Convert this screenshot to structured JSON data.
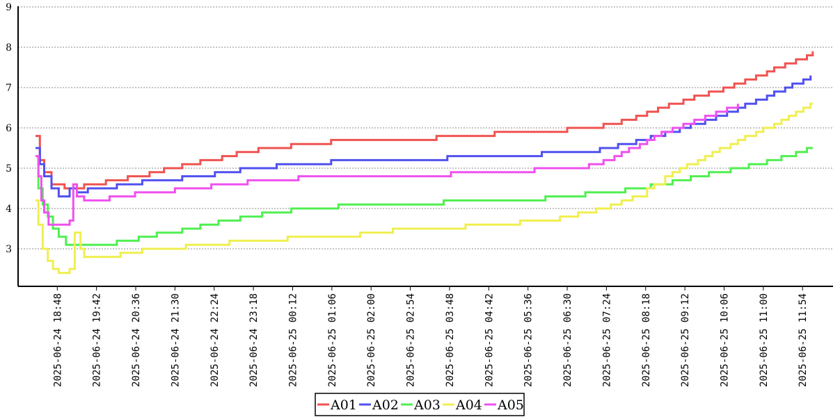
{
  "chart_data": {
    "type": "line",
    "title": "",
    "xlabel": "",
    "ylabel": "",
    "ylim": [
      2,
      9
    ],
    "y_ticks": [
      "3",
      "4",
      "5",
      "6",
      "7",
      "8",
      "9"
    ],
    "grid": "horizontal dashed",
    "legend_placement": "bottom-center",
    "x_tick_labels": [
      "2025-06-24 18:48",
      "2025-06-24 19:42",
      "2025-06-24 20:36",
      "2025-06-24 21:30",
      "2025-06-24 22:24",
      "2025-06-24 23:18",
      "2025-06-25 00:12",
      "2025-06-25 01:06",
      "2025-06-25 02:00",
      "2025-06-25 02:54",
      "2025-06-25 03:48",
      "2025-06-25 04:42",
      "2025-06-25 05:36",
      "2025-06-25 06:30",
      "2025-06-25 07:24",
      "2025-06-25 08:18",
      "2025-06-25 09:12",
      "2025-06-25 10:06",
      "2025-06-25 11:00",
      "2025-06-25 11:54"
    ],
    "x_range": [
      "2025-06-24 18:18",
      "2025-06-25 12:12"
    ],
    "series": [
      {
        "name": "A01",
        "color": "#ef5350",
        "points": [
          [
            "2025-06-24 18:18",
            5.8
          ],
          [
            "2025-06-24 18:24",
            5.2
          ],
          [
            "2025-06-24 18:30",
            4.9
          ],
          [
            "2025-06-24 18:40",
            4.6
          ],
          [
            "2025-06-24 18:58",
            4.5
          ],
          [
            "2025-06-24 19:10",
            4.5
          ],
          [
            "2025-06-24 19:25",
            4.6
          ],
          [
            "2025-06-24 19:55",
            4.7
          ],
          [
            "2025-06-24 20:25",
            4.8
          ],
          [
            "2025-06-24 20:55",
            4.9
          ],
          [
            "2025-06-24 21:15",
            5.0
          ],
          [
            "2025-06-24 21:40",
            5.1
          ],
          [
            "2025-06-24 22:05",
            5.2
          ],
          [
            "2025-06-24 22:35",
            5.3
          ],
          [
            "2025-06-24 22:55",
            5.4
          ],
          [
            "2025-06-24 23:25",
            5.5
          ],
          [
            "2025-06-25 00:10",
            5.6
          ],
          [
            "2025-06-25 01:05",
            5.7
          ],
          [
            "2025-06-25 03:30",
            5.8
          ],
          [
            "2025-06-25 04:50",
            5.9
          ],
          [
            "2025-06-25 06:30",
            6.0
          ],
          [
            "2025-06-25 07:20",
            6.1
          ],
          [
            "2025-06-25 07:45",
            6.2
          ],
          [
            "2025-06-25 08:05",
            6.3
          ],
          [
            "2025-06-25 08:20",
            6.4
          ],
          [
            "2025-06-25 08:35",
            6.5
          ],
          [
            "2025-06-25 08:50",
            6.6
          ],
          [
            "2025-06-25 09:10",
            6.7
          ],
          [
            "2025-06-25 09:25",
            6.8
          ],
          [
            "2025-06-25 09:45",
            6.9
          ],
          [
            "2025-06-25 10:05",
            7.0
          ],
          [
            "2025-06-25 10:20",
            7.1
          ],
          [
            "2025-06-25 10:35",
            7.2
          ],
          [
            "2025-06-25 10:50",
            7.3
          ],
          [
            "2025-06-25 11:05",
            7.4
          ],
          [
            "2025-06-25 11:15",
            7.5
          ],
          [
            "2025-06-25 11:30",
            7.6
          ],
          [
            "2025-06-25 11:45",
            7.7
          ],
          [
            "2025-06-25 12:00",
            7.8
          ],
          [
            "2025-06-25 12:08",
            7.9
          ]
        ]
      },
      {
        "name": "A02",
        "color": "#5050ef",
        "points": [
          [
            "2025-06-24 18:18",
            5.5
          ],
          [
            "2025-06-24 18:24",
            5.1
          ],
          [
            "2025-06-24 18:30",
            4.8
          ],
          [
            "2025-06-24 18:40",
            4.5
          ],
          [
            "2025-06-24 18:50",
            4.3
          ],
          [
            "2025-06-24 19:05",
            4.5
          ],
          [
            "2025-06-24 19:15",
            4.4
          ],
          [
            "2025-06-24 19:30",
            4.5
          ],
          [
            "2025-06-24 20:10",
            4.6
          ],
          [
            "2025-06-24 20:45",
            4.7
          ],
          [
            "2025-06-24 21:40",
            4.8
          ],
          [
            "2025-06-24 22:25",
            4.9
          ],
          [
            "2025-06-24 23:00",
            5.0
          ],
          [
            "2025-06-24 23:50",
            5.1
          ],
          [
            "2025-06-25 01:05",
            5.2
          ],
          [
            "2025-06-25 03:45",
            5.3
          ],
          [
            "2025-06-25 05:55",
            5.4
          ],
          [
            "2025-06-25 07:15",
            5.5
          ],
          [
            "2025-06-25 07:40",
            5.6
          ],
          [
            "2025-06-25 08:05",
            5.7
          ],
          [
            "2025-06-25 08:25",
            5.8
          ],
          [
            "2025-06-25 08:45",
            5.9
          ],
          [
            "2025-06-25 09:05",
            6.0
          ],
          [
            "2025-06-25 09:20",
            6.1
          ],
          [
            "2025-06-25 09:40",
            6.2
          ],
          [
            "2025-06-25 09:55",
            6.3
          ],
          [
            "2025-06-25 10:10",
            6.4
          ],
          [
            "2025-06-25 10:25",
            6.5
          ],
          [
            "2025-06-25 10:35",
            6.6
          ],
          [
            "2025-06-25 10:50",
            6.7
          ],
          [
            "2025-06-25 11:05",
            6.8
          ],
          [
            "2025-06-25 11:15",
            6.9
          ],
          [
            "2025-06-25 11:30",
            7.0
          ],
          [
            "2025-06-25 11:40",
            7.1
          ],
          [
            "2025-06-25 11:55",
            7.2
          ],
          [
            "2025-06-25 12:05",
            7.3
          ]
        ]
      },
      {
        "name": "A03",
        "color": "#50ef50",
        "points": [
          [
            "2025-06-24 18:18",
            5.3
          ],
          [
            "2025-06-24 18:22",
            4.5
          ],
          [
            "2025-06-24 18:28",
            4.1
          ],
          [
            "2025-06-24 18:35",
            3.8
          ],
          [
            "2025-06-24 18:42",
            3.5
          ],
          [
            "2025-06-24 18:50",
            3.3
          ],
          [
            "2025-06-24 19:00",
            3.1
          ],
          [
            "2025-06-24 20:10",
            3.2
          ],
          [
            "2025-06-24 20:40",
            3.3
          ],
          [
            "2025-06-24 21:05",
            3.4
          ],
          [
            "2025-06-24 21:40",
            3.5
          ],
          [
            "2025-06-24 22:05",
            3.6
          ],
          [
            "2025-06-24 22:30",
            3.7
          ],
          [
            "2025-06-24 23:00",
            3.8
          ],
          [
            "2025-06-24 23:30",
            3.9
          ],
          [
            "2025-06-25 00:10",
            4.0
          ],
          [
            "2025-06-25 01:15",
            4.1
          ],
          [
            "2025-06-25 03:40",
            4.2
          ],
          [
            "2025-06-25 06:00",
            4.3
          ],
          [
            "2025-06-25 06:55",
            4.4
          ],
          [
            "2025-06-25 07:50",
            4.5
          ],
          [
            "2025-06-25 08:25",
            4.6
          ],
          [
            "2025-06-25 08:55",
            4.7
          ],
          [
            "2025-06-25 09:20",
            4.8
          ],
          [
            "2025-06-25 09:45",
            4.9
          ],
          [
            "2025-06-25 10:15",
            5.0
          ],
          [
            "2025-06-25 10:40",
            5.1
          ],
          [
            "2025-06-25 11:05",
            5.2
          ],
          [
            "2025-06-25 11:25",
            5.3
          ],
          [
            "2025-06-25 11:45",
            5.4
          ],
          [
            "2025-06-25 12:00",
            5.5
          ],
          [
            "2025-06-25 12:08",
            5.5
          ]
        ]
      },
      {
        "name": "A04",
        "color": "#efef50",
        "points": [
          [
            "2025-06-24 18:18",
            4.2
          ],
          [
            "2025-06-24 18:22",
            3.6
          ],
          [
            "2025-06-24 18:28",
            3.0
          ],
          [
            "2025-06-24 18:35",
            2.7
          ],
          [
            "2025-06-24 18:42",
            2.5
          ],
          [
            "2025-06-24 18:50",
            2.4
          ],
          [
            "2025-06-24 19:05",
            2.5
          ],
          [
            "2025-06-24 19:12",
            3.4
          ],
          [
            "2025-06-24 19:20",
            3.0
          ],
          [
            "2025-06-24 19:25",
            2.8
          ],
          [
            "2025-06-24 20:15",
            2.9
          ],
          [
            "2025-06-24 20:45",
            3.0
          ],
          [
            "2025-06-24 21:45",
            3.1
          ],
          [
            "2025-06-24 22:45",
            3.2
          ],
          [
            "2025-06-25 00:05",
            3.3
          ],
          [
            "2025-06-25 01:45",
            3.4
          ],
          [
            "2025-06-25 02:30",
            3.5
          ],
          [
            "2025-06-25 04:10",
            3.6
          ],
          [
            "2025-06-25 05:25",
            3.7
          ],
          [
            "2025-06-25 06:20",
            3.8
          ],
          [
            "2025-06-25 06:45",
            3.9
          ],
          [
            "2025-06-25 07:10",
            4.0
          ],
          [
            "2025-06-25 07:30",
            4.1
          ],
          [
            "2025-06-25 07:45",
            4.2
          ],
          [
            "2025-06-25 08:00",
            4.3
          ],
          [
            "2025-06-25 08:20",
            4.5
          ],
          [
            "2025-06-25 08:30",
            4.6
          ],
          [
            "2025-06-25 08:45",
            4.8
          ],
          [
            "2025-06-25 08:55",
            4.9
          ],
          [
            "2025-06-25 09:05",
            5.0
          ],
          [
            "2025-06-25 09:15",
            5.1
          ],
          [
            "2025-06-25 09:30",
            5.2
          ],
          [
            "2025-06-25 09:40",
            5.3
          ],
          [
            "2025-06-25 09:50",
            5.4
          ],
          [
            "2025-06-25 10:00",
            5.5
          ],
          [
            "2025-06-25 10:15",
            5.6
          ],
          [
            "2025-06-25 10:25",
            5.7
          ],
          [
            "2025-06-25 10:35",
            5.8
          ],
          [
            "2025-06-25 10:50",
            5.9
          ],
          [
            "2025-06-25 11:00",
            6.0
          ],
          [
            "2025-06-25 11:15",
            6.1
          ],
          [
            "2025-06-25 11:25",
            6.2
          ],
          [
            "2025-06-25 11:35",
            6.3
          ],
          [
            "2025-06-25 11:45",
            6.4
          ],
          [
            "2025-06-25 11:55",
            6.5
          ],
          [
            "2025-06-25 12:05",
            6.6
          ],
          [
            "2025-06-25 12:08",
            6.6
          ]
        ]
      },
      {
        "name": "A05",
        "color": "#ef50ef",
        "points": [
          [
            "2025-06-24 18:18",
            5.3
          ],
          [
            "2025-06-24 18:22",
            4.8
          ],
          [
            "2025-06-24 18:26",
            4.2
          ],
          [
            "2025-06-24 18:30",
            3.9
          ],
          [
            "2025-06-24 18:36",
            3.6
          ],
          [
            "2025-06-24 18:55",
            3.6
          ],
          [
            "2025-06-24 19:05",
            3.7
          ],
          [
            "2025-06-24 19:10",
            4.6
          ],
          [
            "2025-06-24 19:15",
            4.3
          ],
          [
            "2025-06-24 19:25",
            4.2
          ],
          [
            "2025-06-24 20:00",
            4.3
          ],
          [
            "2025-06-24 20:35",
            4.4
          ],
          [
            "2025-06-24 21:30",
            4.5
          ],
          [
            "2025-06-24 22:20",
            4.6
          ],
          [
            "2025-06-24 23:10",
            4.7
          ],
          [
            "2025-06-25 00:20",
            4.8
          ],
          [
            "2025-06-25 03:50",
            4.9
          ],
          [
            "2025-06-25 05:45",
            5.0
          ],
          [
            "2025-06-25 06:30",
            5.0
          ],
          [
            "2025-06-25 07:00",
            5.1
          ],
          [
            "2025-06-25 07:20",
            5.2
          ],
          [
            "2025-06-25 07:35",
            5.3
          ],
          [
            "2025-06-25 07:45",
            5.4
          ],
          [
            "2025-06-25 07:55",
            5.5
          ],
          [
            "2025-06-25 08:10",
            5.6
          ],
          [
            "2025-06-25 08:20",
            5.7
          ],
          [
            "2025-06-25 08:30",
            5.8
          ],
          [
            "2025-06-25 08:40",
            5.9
          ],
          [
            "2025-06-25 08:55",
            6.0
          ],
          [
            "2025-06-25 09:10",
            6.1
          ],
          [
            "2025-06-25 09:25",
            6.2
          ],
          [
            "2025-06-25 09:40",
            6.3
          ],
          [
            "2025-06-25 09:55",
            6.4
          ],
          [
            "2025-06-25 10:10",
            6.5
          ],
          [
            "2025-06-25 10:25",
            6.6
          ]
        ]
      }
    ]
  }
}
